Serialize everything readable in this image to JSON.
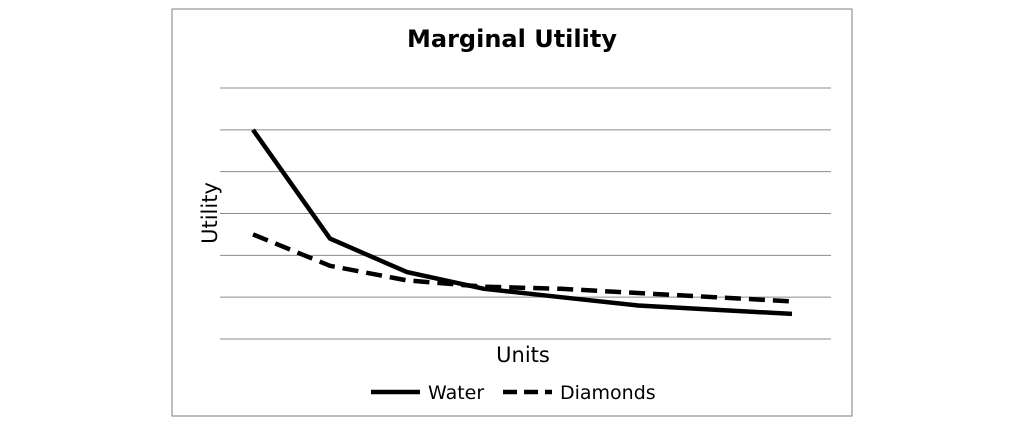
{
  "chart_data": {
    "type": "line",
    "title": "Marginal Utility",
    "xlabel": "Units",
    "ylabel": "Utility",
    "x": [
      1,
      2,
      3,
      4,
      5,
      6,
      7,
      8
    ],
    "ylim": [
      0,
      6
    ],
    "y_gridlines": [
      0,
      1,
      2,
      3,
      4,
      5,
      6
    ],
    "tick_labels_shown": false,
    "grid": true,
    "legend": "bottom",
    "series": [
      {
        "name": "Water",
        "style": "solid",
        "color": "#000000",
        "values": [
          5.0,
          2.4,
          1.6,
          1.2,
          1.0,
          0.8,
          0.7,
          0.6
        ]
      },
      {
        "name": "Diamonds",
        "style": "dashed",
        "color": "#000000",
        "values": [
          2.5,
          1.75,
          1.4,
          1.25,
          1.2,
          1.1,
          1.0,
          0.9
        ]
      }
    ]
  }
}
